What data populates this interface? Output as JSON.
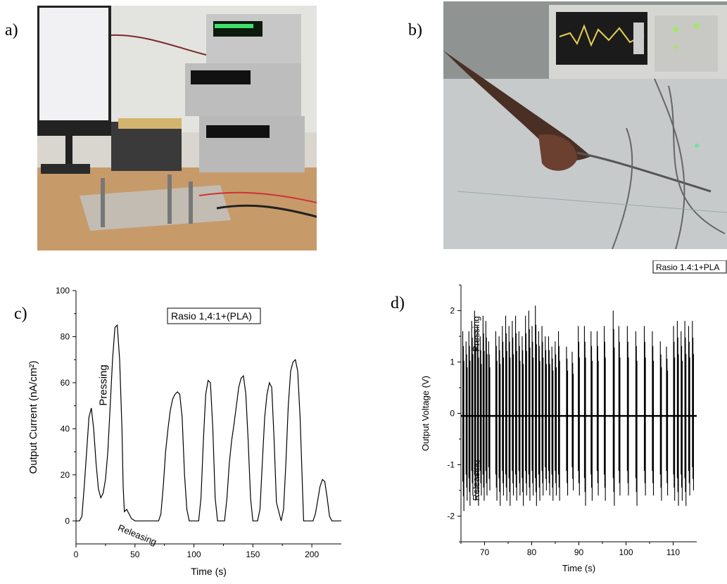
{
  "panels": {
    "a": "a)",
    "b": "b)",
    "c": "c)",
    "d": "d)"
  },
  "photos": {
    "a": "lab setup photo",
    "b": "oscilloscope measurement photo"
  },
  "chart_data": [
    {
      "panel": "c",
      "type": "line",
      "xlabel": "Time (s)",
      "ylabel": "Output Current (nA/cm²)",
      "xlim": [
        0,
        225
      ],
      "ylim": [
        -10,
        100
      ],
      "xticks": [
        0,
        50,
        100,
        150,
        200
      ],
      "yticks": [
        0,
        20,
        40,
        60,
        80,
        100
      ],
      "legend": "Rasio 1,4:1+(PLA)",
      "annotations": [
        "Pressing",
        "Releasing"
      ],
      "series": [
        {
          "x": [
            0,
            3,
            5,
            7,
            9,
            11,
            13,
            15,
            17,
            19,
            21,
            23,
            25,
            27,
            29,
            31,
            33,
            35,
            37,
            39,
            40,
            41,
            43,
            45,
            47,
            50,
            55,
            60,
            65,
            70,
            72,
            74,
            76,
            78,
            80,
            82,
            84,
            86,
            88,
            90,
            92,
            94,
            96,
            98,
            100,
            104,
            106,
            108,
            110,
            112,
            114,
            116,
            118,
            120,
            126,
            128,
            130,
            132,
            134,
            136,
            138,
            140,
            142,
            144,
            146,
            148,
            150,
            154,
            156,
            158,
            160,
            162,
            164,
            166,
            168,
            170,
            174,
            176,
            178,
            180,
            182,
            184,
            186,
            188,
            190,
            193,
            195,
            201,
            203,
            205,
            207,
            209,
            211,
            213,
            215,
            217,
            220,
            225
          ],
          "y": [
            0,
            0,
            2,
            15,
            30,
            45,
            49,
            40,
            25,
            14,
            10,
            12,
            18,
            30,
            50,
            70,
            84,
            85,
            70,
            40,
            15,
            4,
            5,
            3,
            1,
            0,
            0,
            0,
            0,
            0,
            3,
            15,
            30,
            40,
            48,
            53,
            55,
            56,
            55,
            45,
            20,
            5,
            0,
            0,
            0,
            0,
            10,
            35,
            55,
            61,
            60,
            40,
            10,
            0,
            0,
            10,
            25,
            35,
            42,
            50,
            58,
            62,
            63,
            55,
            35,
            10,
            0,
            0,
            5,
            25,
            45,
            55,
            60,
            58,
            35,
            8,
            0,
            5,
            25,
            50,
            65,
            69,
            70,
            65,
            45,
            0,
            0,
            0,
            3,
            9,
            15,
            18,
            17,
            10,
            2,
            0,
            0,
            0
          ]
        }
      ]
    },
    {
      "panel": "d",
      "type": "line",
      "xlabel": "Time (s)",
      "ylabel": "Output Voltage (V)",
      "xlim": [
        65,
        115
      ],
      "ylim": [
        -2.5,
        2.5
      ],
      "xticks": [
        70,
        80,
        90,
        100,
        110
      ],
      "yticks": [
        -2,
        -1,
        0,
        1,
        2
      ],
      "legend": "Rasio 1.4:1+PLA",
      "annotations": [
        "Pressing",
        "Releasing"
      ],
      "series": [
        {
          "spikes": [
            [
              65.5,
              1.6,
              -1.9
            ],
            [
              66.2,
              1.4,
              -1.7
            ],
            [
              66.8,
              1.6,
              -1.8
            ],
            [
              67.4,
              1.8,
              -1.6
            ],
            [
              68.0,
              2.0,
              -1.7
            ],
            [
              68.6,
              1.7,
              -1.8
            ],
            [
              69.2,
              1.5,
              -1.6
            ],
            [
              69.8,
              1.9,
              -1.7
            ],
            [
              70.4,
              1.8,
              -1.6
            ],
            [
              71.0,
              1.4,
              -1.5
            ],
            [
              72.5,
              1.6,
              -1.7
            ],
            [
              73.2,
              1.5,
              -1.8
            ],
            [
              73.9,
              1.7,
              -1.6
            ],
            [
              74.6,
              1.9,
              -1.7
            ],
            [
              75.3,
              1.7,
              -1.8
            ],
            [
              76.0,
              1.8,
              -1.6
            ],
            [
              76.7,
              1.9,
              -1.7
            ],
            [
              77.4,
              1.6,
              -1.6
            ],
            [
              78.1,
              1.5,
              -1.8
            ],
            [
              78.8,
              1.9,
              -1.6
            ],
            [
              79.5,
              2.0,
              -1.7
            ],
            [
              80.2,
              1.7,
              -1.6
            ],
            [
              80.9,
              2.1,
              -1.8
            ],
            [
              81.6,
              1.6,
              -1.7
            ],
            [
              82.3,
              1.7,
              -1.6
            ],
            [
              83.0,
              1.5,
              -1.5
            ],
            [
              83.7,
              1.5,
              -1.6
            ],
            [
              84.4,
              1.3,
              -1.7
            ],
            [
              85.1,
              1.4,
              -1.6
            ],
            [
              85.8,
              1.6,
              -1.7
            ],
            [
              87.5,
              1.3,
              -1.6
            ],
            [
              88.7,
              1.2,
              -1.5
            ],
            [
              90.0,
              1.7,
              -1.6
            ],
            [
              91.3,
              1.7,
              -1.8
            ],
            [
              92.7,
              1.6,
              -1.7
            ],
            [
              94.0,
              1.6,
              -1.6
            ],
            [
              95.5,
              1.7,
              -1.7
            ],
            [
              97.4,
              2.0,
              -1.8
            ],
            [
              98.6,
              1.7,
              -1.6
            ],
            [
              100.4,
              1.7,
              -1.6
            ],
            [
              102.2,
              1.6,
              -1.8
            ],
            [
              104.0,
              1.7,
              -1.6
            ],
            [
              105.7,
              1.6,
              -1.6
            ],
            [
              107.4,
              1.4,
              -1.7
            ],
            [
              108.7,
              1.3,
              -1.6
            ],
            [
              110.2,
              1.7,
              -1.7
            ],
            [
              111.0,
              1.8,
              -1.8
            ],
            [
              111.8,
              1.6,
              -1.7
            ],
            [
              112.6,
              1.8,
              -1.8
            ],
            [
              113.4,
              1.7,
              -1.6
            ],
            [
              114.2,
              1.8,
              -1.5
            ]
          ]
        }
      ]
    }
  ]
}
